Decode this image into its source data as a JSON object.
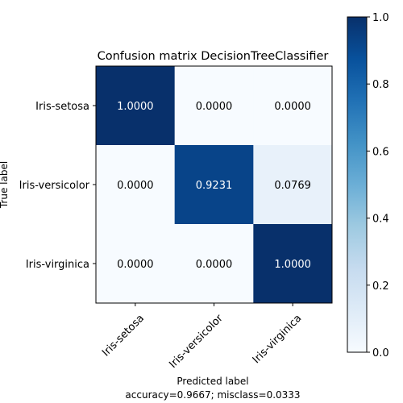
{
  "chart_data": {
    "type": "heatmap",
    "title": "Confusion matrix DecisionTreeClassifier",
    "xlabel": "Predicted label",
    "ylabel": "True label",
    "footer": "accuracy=0.9667; misclass=0.0333",
    "x_categories": [
      "Iris-setosa",
      "Iris-versicolor",
      "Iris-virginica"
    ],
    "y_categories": [
      "Iris-setosa",
      "Iris-versicolor",
      "Iris-virginica"
    ],
    "values": [
      [
        1.0,
        0.0,
        0.0
      ],
      [
        0.0,
        0.9231,
        0.0769
      ],
      [
        0.0,
        0.0,
        1.0
      ]
    ],
    "cell_labels": [
      [
        "1.0000",
        "0.0000",
        "0.0000"
      ],
      [
        "0.0000",
        "0.9231",
        "0.0769"
      ],
      [
        "0.0000",
        "0.0000",
        "1.0000"
      ]
    ],
    "colormap": "Blues",
    "colorbar": {
      "range": [
        0.0,
        1.0
      ],
      "ticks": [
        "0.0",
        "0.2",
        "0.4",
        "0.6",
        "0.8",
        "1.0"
      ]
    },
    "text_colors": {
      "light": "#ffffff",
      "dark": "#000000"
    },
    "grid": false
  }
}
